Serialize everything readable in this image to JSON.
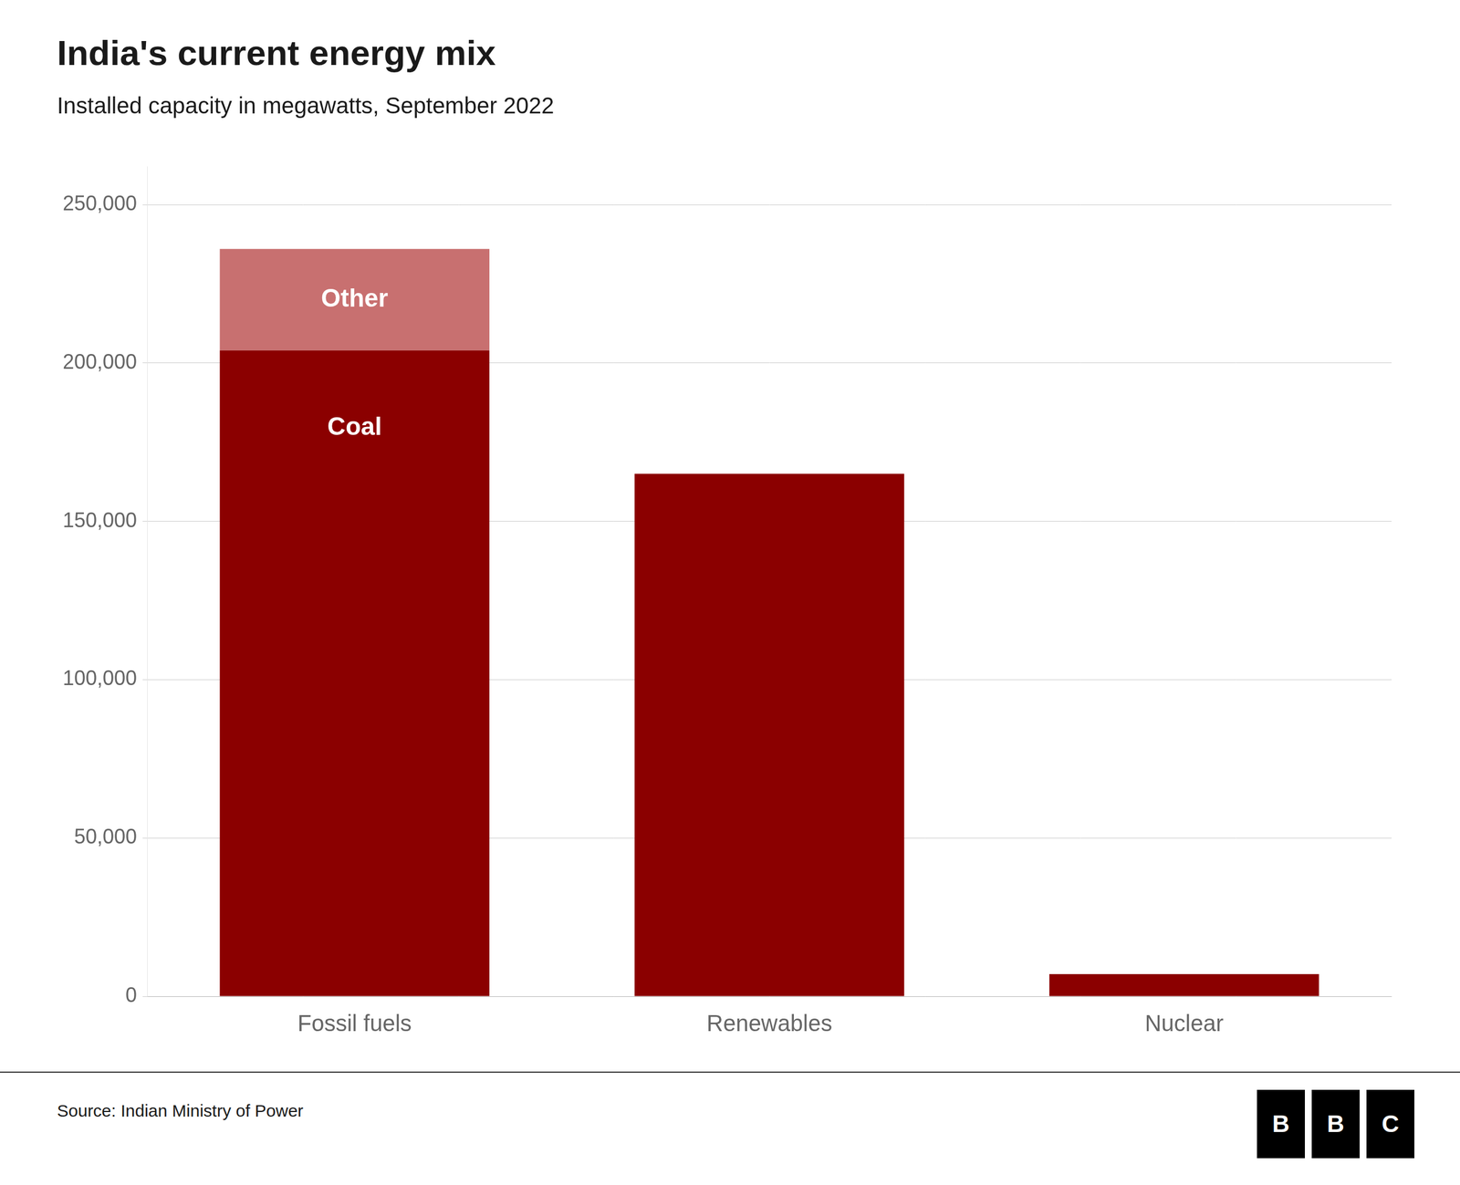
{
  "chart_data": {
    "type": "bar",
    "title": "India's current energy mix",
    "subtitle": "Installed capacity in megawatts, September 2022",
    "categories": [
      "Fossil fuels",
      "Renewables",
      "Nuclear"
    ],
    "series": [
      {
        "name": "Coal",
        "color": "#8B0000",
        "values": [
          204000,
          165000,
          7000
        ]
      },
      {
        "name": "Other",
        "color": "#C87070",
        "values": [
          32000,
          0,
          0
        ]
      }
    ],
    "stacked": true,
    "ylim": [
      0,
      262000
    ],
    "yticks": [
      0,
      {
        "value": 50000,
        "label": "50,000"
      },
      {
        "value": 100000,
        "label": "100,000"
      },
      {
        "value": 150000,
        "label": "150,000"
      },
      {
        "value": 200000,
        "label": "200,000"
      },
      {
        "value": 250000,
        "label": "250,000"
      }
    ],
    "grid": true,
    "annotations": [
      {
        "text": "Coal",
        "category": "Fossil fuels",
        "series": "Coal"
      },
      {
        "text": "Other",
        "category": "Fossil fuels",
        "series": "Other"
      }
    ],
    "source": "Source: Indian Ministry of Power",
    "logo": "BBC"
  }
}
